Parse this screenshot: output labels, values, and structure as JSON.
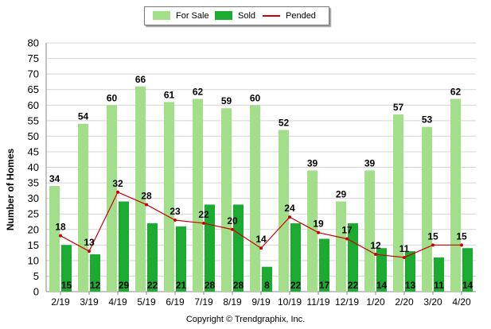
{
  "chart_data": {
    "type": "bar",
    "ylabel": "Number of Homes",
    "ylim": [
      0,
      80
    ],
    "yticks": [
      0,
      5,
      10,
      15,
      20,
      25,
      30,
      35,
      40,
      45,
      50,
      55,
      60,
      65,
      70,
      75,
      80
    ],
    "grid": true,
    "legend_position": "top-center",
    "categories": [
      "2/19",
      "3/19",
      "4/19",
      "5/19",
      "6/19",
      "7/19",
      "8/19",
      "9/19",
      "10/19",
      "11/19",
      "12/19",
      "1/20",
      "2/20",
      "3/20",
      "4/20"
    ],
    "series": [
      {
        "name": "For Sale",
        "type": "bar",
        "color": "#a3df8a",
        "values": [
          34,
          54,
          60,
          66,
          61,
          62,
          59,
          60,
          52,
          39,
          29,
          39,
          57,
          53,
          62
        ]
      },
      {
        "name": "Sold",
        "type": "bar",
        "color": "#1aab30",
        "values": [
          15,
          12,
          29,
          22,
          21,
          28,
          28,
          8,
          22,
          17,
          22,
          14,
          13,
          11,
          14
        ]
      },
      {
        "name": "Pended",
        "type": "line",
        "color": "#cc0000",
        "values": [
          18,
          13,
          32,
          28,
          23,
          22,
          20,
          14,
          24,
          19,
          17,
          12,
          11,
          15,
          15
        ]
      }
    ]
  },
  "legend": {
    "for_sale": "For Sale",
    "sold": "Sold",
    "pended": "Pended"
  },
  "copyright": "Copyright © Trendgraphix, Inc."
}
